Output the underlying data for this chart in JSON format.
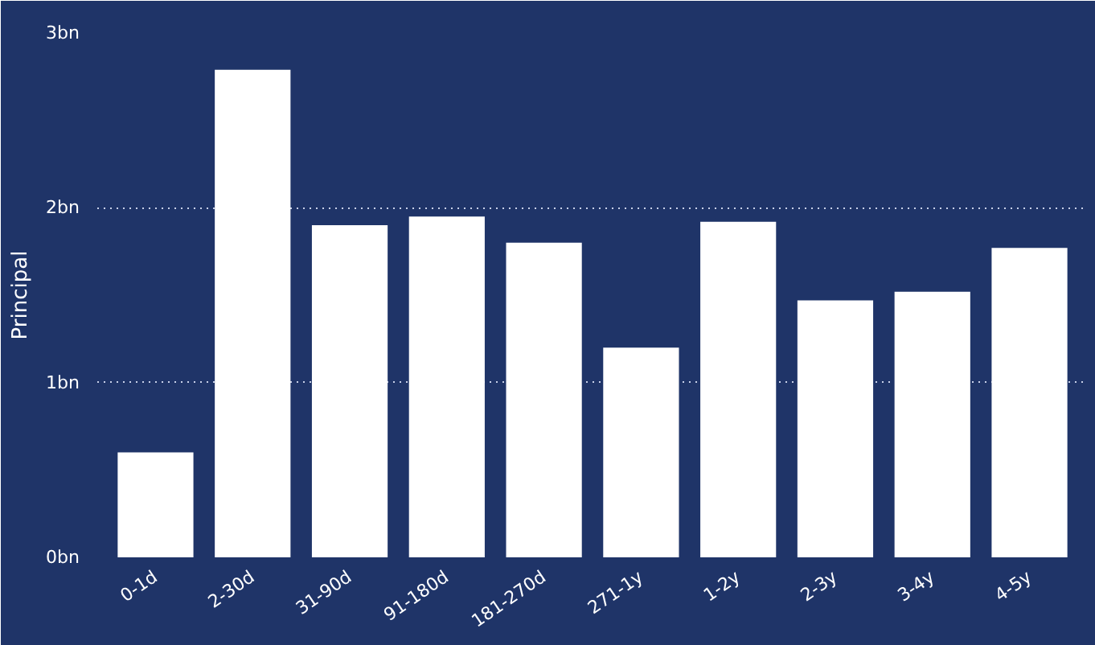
{
  "chart_data": {
    "type": "bar",
    "ylabel": "Principal",
    "categories": [
      "0-1d",
      "2-30d",
      "31-90d",
      "91-180d",
      "181-270d",
      "271-1y",
      "1-2y",
      "2-3y",
      "3-4y",
      "4-5y"
    ],
    "values": [
      0.6,
      2.79,
      1.9,
      1.95,
      1.8,
      1.2,
      1.92,
      1.47,
      1.52,
      1.77
    ],
    "color": "#ffffff",
    "ylim": [
      0,
      3
    ],
    "yticks": [
      {
        "value": 0,
        "label": "0bn"
      },
      {
        "value": 1,
        "label": "1bn"
      },
      {
        "value": 2,
        "label": "2bn"
      },
      {
        "value": 3,
        "label": "3bn"
      }
    ],
    "grid": "y"
  }
}
